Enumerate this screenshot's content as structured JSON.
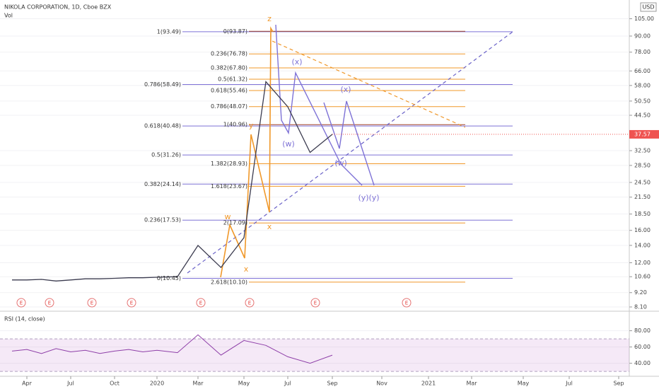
{
  "chart_data": [
    {
      "type": "line",
      "title": "NIKOLA CORPORATION, 1D, Cboe BZX",
      "subtitle": "Vol",
      "currency": "USD",
      "categories": [
        null,
        "Apr",
        null,
        null,
        "Jul",
        null,
        null,
        "Oct",
        null,
        null,
        "2020",
        null,
        "Mar",
        null,
        "May",
        null,
        "Jul",
        null,
        "Sep",
        null,
        "Nov",
        null,
        "2021",
        null,
        "Mar",
        null,
        "May",
        null,
        "Jul",
        null,
        "Sep"
      ],
      "series": [
        {
          "color": "#3b3b4f",
          "values": [
            10.3,
            10.3,
            10.35,
            10.2,
            10.3,
            10.4,
            10.4,
            10.45,
            10.5,
            10.5,
            10.55,
            10.6,
            14,
            11.5,
            15,
            60,
            48,
            32,
            37.57,
            null,
            null,
            null,
            null,
            null,
            null,
            null,
            null,
            null,
            null,
            null,
            null
          ]
        }
      ],
      "log_scale": true,
      "ylim": [
        7.8,
        124
      ],
      "yticks": [
        {
          "value": 105,
          "label": "105.00"
        },
        {
          "value": 90,
          "label": "90.00"
        },
        {
          "value": 78,
          "label": "78.00"
        },
        {
          "value": 66,
          "label": "66.00"
        },
        {
          "value": 58,
          "label": "58.00"
        },
        {
          "value": 50.5,
          "label": "50.50"
        },
        {
          "value": 44.5,
          "label": "44.50"
        },
        {
          "value": 32.5,
          "label": "32.50"
        },
        {
          "value": 28.5,
          "label": "28.50"
        },
        {
          "value": 24.5,
          "label": "24.50"
        },
        {
          "value": 21.5,
          "label": "21.50"
        },
        {
          "value": 18.5,
          "label": "18.50"
        },
        {
          "value": 16,
          "label": "16.00"
        },
        {
          "value": 14,
          "label": "14.00"
        },
        {
          "value": 12,
          "label": "12.00"
        },
        {
          "value": 10.6,
          "label": "10.60"
        },
        {
          "value": 9.2,
          "label": "9.20"
        },
        {
          "value": 8.1,
          "label": "8.10"
        }
      ],
      "fib_levels": [
        {
          "label": "1(93.49)",
          "value": 93.49,
          "color": "#7e72d6"
        },
        {
          "label": "0.786(58.49)",
          "value": 58.49,
          "color": "#7e72d6"
        },
        {
          "label": "0.618(40.48)",
          "value": 40.48,
          "color": "#7e72d6"
        },
        {
          "label": "0.5(31.26)",
          "value": 31.26,
          "color": "#7e72d6"
        },
        {
          "label": "0.382(24.14)",
          "value": 24.14,
          "color": "#7e72d6"
        },
        {
          "label": "0.236(17.53)",
          "value": 17.53,
          "color": "#7e72d6"
        },
        {
          "label": "0(10.45)",
          "value": 10.45,
          "color": "#7e72d6"
        },
        {
          "label": "0(93.87)",
          "value": 93.87,
          "color": "#a0442c"
        },
        {
          "label": "0.236(76.78)",
          "value": 76.78,
          "color": "#f0982a"
        },
        {
          "label": "0.382(67.80)",
          "value": 67.8,
          "color": "#f0982a"
        },
        {
          "label": "0.5(61.32)",
          "value": 61.32,
          "color": "#f0982a"
        },
        {
          "label": "0.618(55.46)",
          "value": 55.46,
          "color": "#f0982a"
        },
        {
          "label": "0.786(48.07)",
          "value": 48.07,
          "color": "#f0982a"
        },
        {
          "label": "1(40.96)",
          "value": 40.96,
          "color": "#a0442c"
        },
        {
          "label": "1.382(28.93)",
          "value": 28.93,
          "color": "#f0982a"
        },
        {
          "label": "1.618(23.67)",
          "value": 23.67,
          "color": "#f0982a"
        },
        {
          "label": "2(17.09)",
          "value": 17.09,
          "color": "#f0982a"
        },
        {
          "label": "2.618(10.10)",
          "value": 10.1,
          "color": "#f0982a"
        }
      ],
      "wave_labels": [
        "z",
        "(x)",
        "(x)",
        "y",
        "(w)",
        "(w)",
        "(y)",
        "(y)",
        "w",
        "x",
        "x"
      ],
      "earnings": [
        "E",
        "E",
        "E",
        "E",
        "E",
        "E",
        "E",
        "E"
      ]
    },
    {
      "type": "line",
      "title": "RSI (14, close)",
      "series": [
        {
          "color": "#8e3fa8",
          "values": [
            55,
            57,
            52,
            58,
            54,
            56,
            52,
            55,
            57,
            54,
            56,
            53,
            75,
            50,
            68,
            62,
            48,
            40,
            50,
            null,
            null,
            null,
            null,
            null,
            null,
            null,
            null,
            null,
            null,
            null,
            null
          ]
        }
      ],
      "ylim": [
        24,
        104
      ],
      "band": [
        30,
        70
      ],
      "yticks": [
        {
          "value": 80,
          "label": "80.00"
        },
        {
          "value": 60,
          "label": "60.00"
        },
        {
          "value": 40,
          "label": "40.00"
        }
      ]
    }
  ]
}
